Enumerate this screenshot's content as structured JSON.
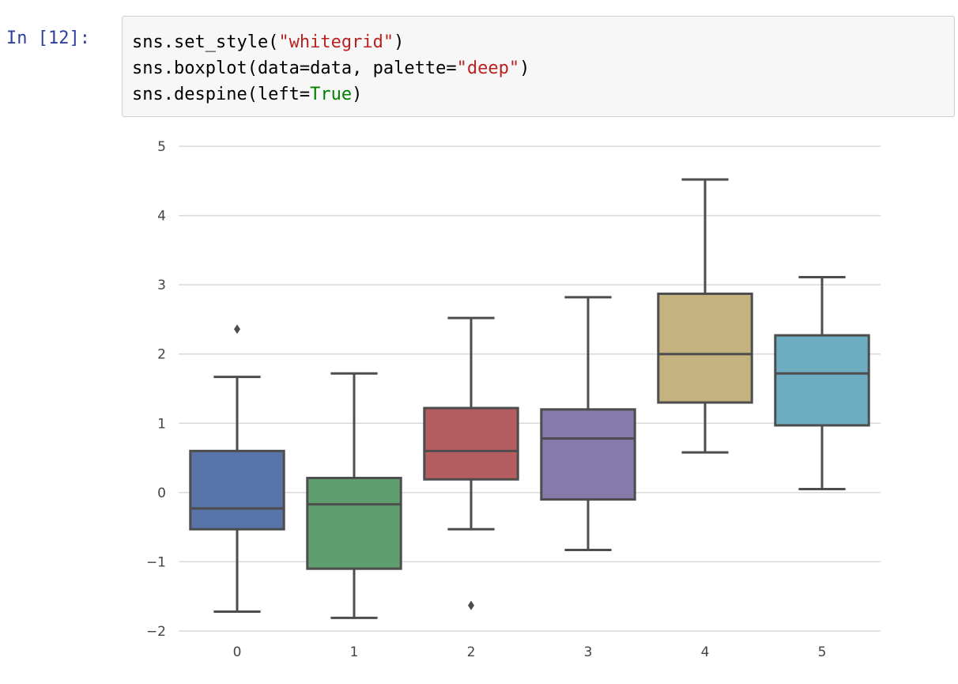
{
  "cell": {
    "prompt": "In [12]:",
    "lines": [
      [
        {
          "t": "sns.set_style("
        },
        {
          "t": "\"whitegrid\"",
          "c": "str"
        },
        {
          "t": ")"
        }
      ],
      [
        {
          "t": "sns.boxplot(data=data, palette="
        },
        {
          "t": "\"deep\"",
          "c": "str"
        },
        {
          "t": ")"
        }
      ],
      [
        {
          "t": "sns.despine(left="
        },
        {
          "t": "True",
          "c": "kw"
        },
        {
          "t": ")"
        }
      ]
    ]
  },
  "chart_data": {
    "type": "box",
    "categories": [
      "0",
      "1",
      "2",
      "3",
      "4",
      "5"
    ],
    "ylim": [
      -2,
      5
    ],
    "yticks": [
      "5",
      "4",
      "3",
      "2",
      "1",
      "0",
      "−1",
      "−2"
    ],
    "ytick_values": [
      5,
      4,
      3,
      2,
      1,
      0,
      -1,
      -2
    ],
    "grid": "horizontal",
    "colors": [
      "#5874a8",
      "#5f9e6e",
      "#b55d60",
      "#857aab",
      "#c4b37e",
      "#6ead c1"
    ],
    "boxes": [
      {
        "q1": -0.53,
        "median": -0.23,
        "q3": 0.6,
        "whisker_low": -1.72,
        "whisker_high": 1.67,
        "outliers": [
          2.36
        ]
      },
      {
        "q1": -1.1,
        "median": -0.17,
        "q3": 0.21,
        "whisker_low": -1.81,
        "whisker_high": 1.72,
        "outliers": []
      },
      {
        "q1": 0.19,
        "median": 0.6,
        "q3": 1.22,
        "whisker_low": -0.53,
        "whisker_high": 2.52,
        "outliers": [
          -1.63
        ]
      },
      {
        "q1": -0.1,
        "median": 0.78,
        "q3": 1.2,
        "whisker_low": -0.83,
        "whisker_high": 2.82,
        "outliers": []
      },
      {
        "q1": 1.3,
        "median": 2.0,
        "q3": 2.87,
        "whisker_low": 0.58,
        "whisker_high": 4.52,
        "outliers": []
      },
      {
        "q1": 0.97,
        "median": 1.72,
        "q3": 2.27,
        "whisker_low": 0.05,
        "whisker_high": 3.11,
        "outliers": []
      }
    ]
  }
}
